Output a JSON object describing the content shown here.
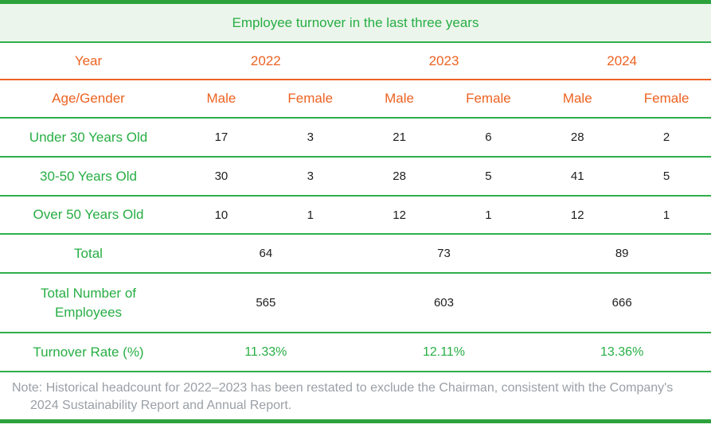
{
  "title": "Employee turnover in the last three years",
  "colors": {
    "green_text": "#27ae44",
    "green_border": "#2fae4a",
    "green_band": "#2da23c",
    "orange": "#ed6221",
    "title_background": "#ecf5ec",
    "number_text": "#1e1e1e",
    "note_gray": "#9aa0a6"
  },
  "header": {
    "year_label": "Year",
    "years": [
      "2022",
      "2023",
      "2024"
    ],
    "age_gender_label": "Age/Gender",
    "gender_columns": [
      "Male",
      "Female",
      "Male",
      "Female",
      "Male",
      "Female"
    ]
  },
  "rows": [
    {
      "label": "Under 30 Years Old",
      "values": [
        "17",
        "3",
        "21",
        "6",
        "28",
        "2"
      ]
    },
    {
      "label": "30-50 Years Old",
      "values": [
        "30",
        "3",
        "28",
        "5",
        "41",
        "5"
      ]
    },
    {
      "label": "Over 50 Years Old",
      "values": [
        "10",
        "1",
        "12",
        "1",
        "12",
        "1"
      ]
    }
  ],
  "totals": {
    "label": "Total",
    "values": [
      "64",
      "73",
      "89"
    ]
  },
  "employees": {
    "label": "Total Number of Employees",
    "values": [
      "565",
      "603",
      "666"
    ]
  },
  "turnover": {
    "label": "Turnover Rate (%)",
    "values": [
      "11.33%",
      "12.11%",
      "13.36%"
    ]
  },
  "note": {
    "text": "Note: Historical headcount for 2022–2023 has been restated to exclude the Chairman, consistent with the Company's 2024 Sustainability Report and Annual Report."
  },
  "chart_data": {
    "type": "table",
    "title": "Employee turnover in the last three years",
    "columns": [
      "Age/Gender",
      "2022 Male",
      "2022 Female",
      "2023 Male",
      "2023 Female",
      "2024 Male",
      "2024 Female"
    ],
    "rows": [
      [
        "Under 30 Years Old",
        17,
        3,
        21,
        6,
        28,
        2
      ],
      [
        "30-50 Years Old",
        30,
        3,
        28,
        5,
        41,
        5
      ],
      [
        "Over 50 Years Old",
        10,
        1,
        12,
        1,
        12,
        1
      ]
    ],
    "totals_by_year": {
      "2022": 64,
      "2023": 73,
      "2024": 89
    },
    "total_employees_by_year": {
      "2022": 565,
      "2023": 603,
      "2024": 666
    },
    "turnover_rate_by_year": {
      "2022": "11.33%",
      "2023": "12.11%",
      "2024": "13.36%"
    },
    "note": "Note: Historical headcount for 2022–2023 has been restated to exclude the Chairman, consistent with the Company's 2024 Sustainability Report and Annual Report."
  }
}
